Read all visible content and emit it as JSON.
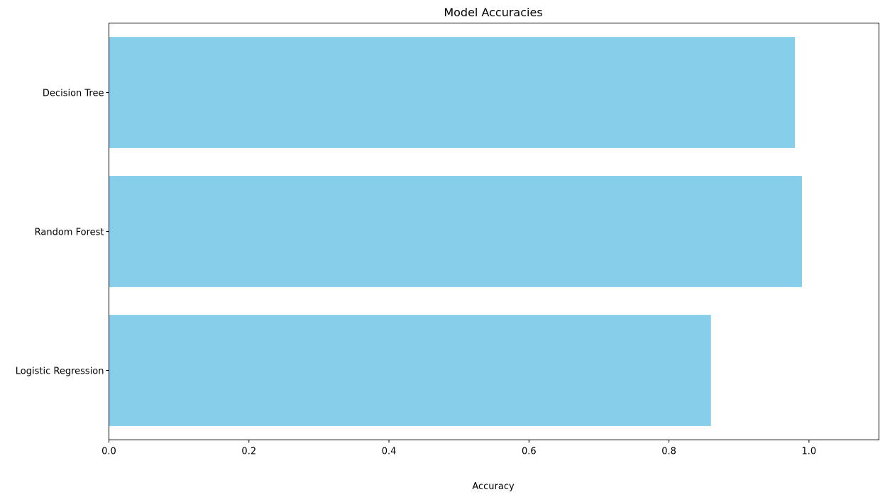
{
  "chart_data": {
    "type": "bar",
    "orientation": "horizontal",
    "title": "Model Accuracies",
    "xlabel": "Accuracy",
    "ylabel": "",
    "categories": [
      "Logistic Regression",
      "Random Forest",
      "Decision Tree"
    ],
    "values": [
      0.86,
      0.99,
      0.98
    ],
    "xlim": [
      0,
      1.1
    ],
    "xticks": [
      "0.0",
      "0.2",
      "0.4",
      "0.6",
      "0.8",
      "1.0"
    ],
    "grid": false,
    "bar_color": "#87ceeb"
  }
}
